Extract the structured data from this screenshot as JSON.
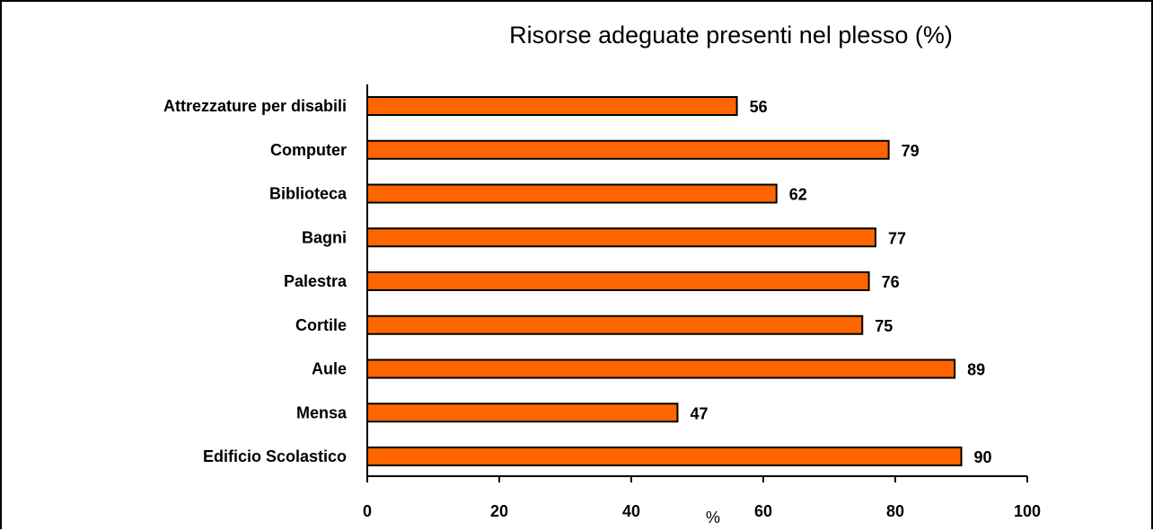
{
  "chart_data": {
    "type": "bar",
    "orientation": "horizontal",
    "title": "Risorse adeguate presenti nel plesso (%)",
    "xlabel": "%",
    "ylabel": "",
    "xlim": [
      0,
      100
    ],
    "xticks": [
      0,
      20,
      40,
      60,
      80,
      100
    ],
    "categories": [
      "Attrezzature per disabili",
      "Computer",
      "Biblioteca",
      "Bagni",
      "Palestra",
      "Cortile",
      "Aule",
      "Mensa",
      "Edificio Scolastico"
    ],
    "values": [
      56,
      79,
      62,
      77,
      76,
      75,
      89,
      47,
      90
    ],
    "bar_color": "#ff6600",
    "bar_border_color": "#000000",
    "grid": false,
    "legend": "none",
    "data_labels": true
  }
}
